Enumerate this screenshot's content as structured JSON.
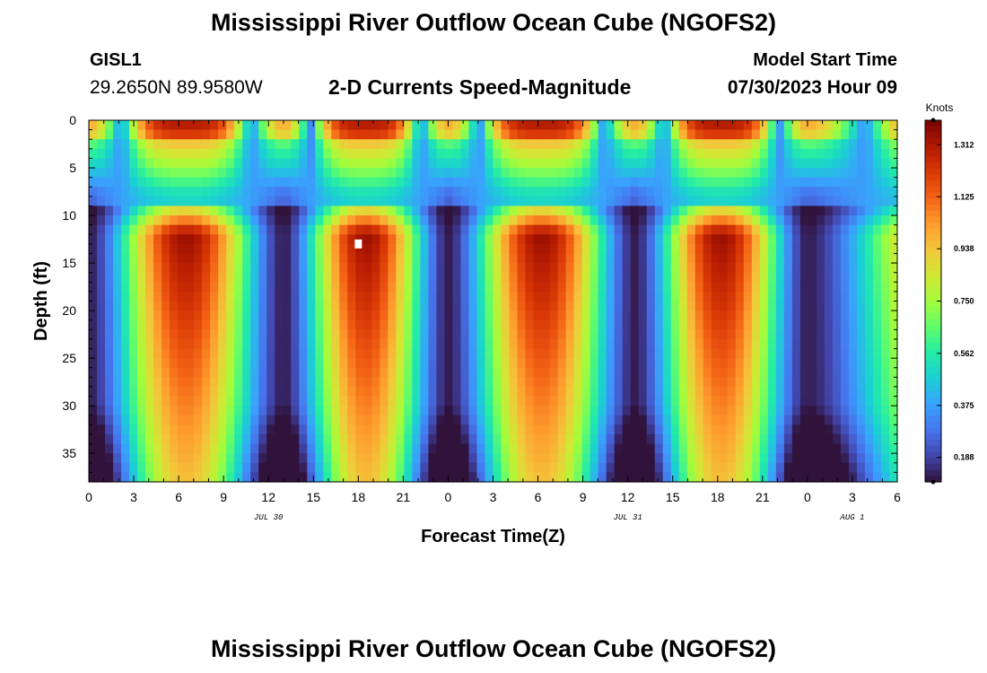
{
  "title": "Mississippi River Outflow Ocean Cube (NGOFS2)",
  "title_repeat": "Mississippi River Outflow Ocean Cube (NGOFS2)",
  "station": "GISL1",
  "coordinates": "29.2650N  89.9580W",
  "subtitle": "2-D Currents Speed-Magnitude",
  "model_start_label": "Model Start Time",
  "model_start_value": "07/30/2023 Hour 09",
  "chart_data": {
    "type": "heatmap",
    "xlabel": "Forecast Time(Z)",
    "ylabel": "Depth (ft)",
    "x_tick_labels": [
      "0",
      "3",
      "6",
      "9",
      "12",
      "15",
      "18",
      "21",
      "0",
      "3",
      "6",
      "9",
      "12",
      "15",
      "18",
      "21",
      "0",
      "3",
      "6"
    ],
    "x_range_hours": [
      0,
      54
    ],
    "date_labels": [
      {
        "label": "JUL 30",
        "hour": 12
      },
      {
        "label": "JUL 31",
        "hour": 36
      },
      {
        "label": "AUG 1",
        "hour": 51
      }
    ],
    "y_tick_labels": [
      "0",
      "5",
      "10",
      "15",
      "20",
      "25",
      "30",
      "35"
    ],
    "y_ticks": [
      0,
      5,
      10,
      15,
      20,
      25,
      30,
      35
    ],
    "ylim": [
      0,
      38
    ],
    "colorbar": {
      "unit": "Knots",
      "labels": [
        "1.312",
        "1.125",
        "0.938",
        "0.750",
        "0.562",
        "0.375",
        "0.188"
      ],
      "range": [
        0.1,
        1.4
      ],
      "colors": [
        "#30123b",
        "#4145ab",
        "#4675ed",
        "#39a2fc",
        "#1bcfd4",
        "#24eca6",
        "#61fc6c",
        "#a4fc3b",
        "#d1e834",
        "#f3c63a",
        "#fe9b2d",
        "#f36315",
        "#d93806",
        "#b11901",
        "#7a0403"
      ]
    },
    "features": {
      "speed_max_knots": 1.35,
      "speed_min_knots": 0.12,
      "slack_water_hours": [
        0,
        13,
        24,
        36.5,
        48
      ],
      "peak_current_hours": [
        5.5,
        16.5,
        29.5,
        41,
        54
      ],
      "maximum_marker": {
        "hour": 18,
        "depth_ft": 13
      }
    }
  }
}
